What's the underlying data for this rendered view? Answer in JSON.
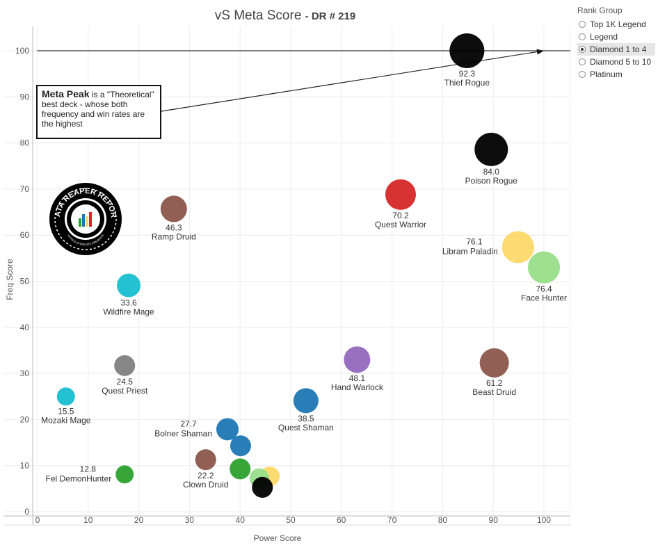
{
  "header": {
    "title": "vS Meta Score",
    "subtitle": "- DR # 219"
  },
  "legend": {
    "title": "Rank Group",
    "items": [
      {
        "label": "Top 1K Legend",
        "selected": false
      },
      {
        "label": "Legend",
        "selected": false
      },
      {
        "label": "Diamond 1 to 4",
        "selected": true
      },
      {
        "label": "Diamond 5 to 10",
        "selected": false
      },
      {
        "label": "Platinum",
        "selected": false
      }
    ]
  },
  "annotation": {
    "bold": "Meta Peak",
    "text": " is a \"Theoretical\" best deck - whose both frequency and win rates are the highest"
  },
  "logo": {
    "text_top": "DATA REAPER REPORT",
    "text_bottom": "VICIOUS SYNDICATE PRESENTS"
  },
  "chart_data": {
    "type": "scatter",
    "xlabel": "Power Score",
    "ylabel": "Freq Score",
    "xlim": [
      0,
      105
    ],
    "ylim": [
      -1,
      105
    ],
    "xticks": [
      0,
      10,
      20,
      30,
      40,
      50,
      60,
      70,
      80,
      90,
      100
    ],
    "yticks": [
      0,
      10,
      20,
      30,
      40,
      50,
      60,
      70,
      80,
      90,
      100
    ],
    "grid": true,
    "reference_line_y": 100,
    "meta_peak": {
      "x": 100,
      "y": 100
    },
    "points": [
      {
        "name": "Thief Rogue",
        "score": "92.3",
        "x": 84.8,
        "y": 100.0,
        "color": "#000000",
        "r": 25,
        "label_pos": "below"
      },
      {
        "name": "Poison Rogue",
        "score": "84.0",
        "x": 89.6,
        "y": 78.6,
        "color": "#000000",
        "r": 24,
        "label_pos": "below"
      },
      {
        "name": "Quest Warrior",
        "score": "70.2",
        "x": 71.7,
        "y": 68.8,
        "color": "#d62728",
        "r": 22,
        "label_pos": "below"
      },
      {
        "name": "Libram Paladin",
        "score": "76.1",
        "x": 94.9,
        "y": 57.4,
        "color": "#fdd86a",
        "r": 23,
        "label_pos": "left"
      },
      {
        "name": "Face Hunter",
        "score": "76.4",
        "x": 100.0,
        "y": 53.0,
        "color": "#98df8a",
        "r": 23,
        "label_pos": "below"
      },
      {
        "name": "Ramp Druid",
        "score": "46.3",
        "x": 26.9,
        "y": 65.7,
        "color": "#8c564b",
        "r": 19,
        "label_pos": "below"
      },
      {
        "name": "Wildfire Mage",
        "score": "33.6",
        "x": 18.0,
        "y": 49.1,
        "color": "#17becf",
        "r": 17,
        "label_pos": "below"
      },
      {
        "name": "Quest Priest",
        "score": "24.5",
        "x": 17.2,
        "y": 31.7,
        "color": "#7f7f7f",
        "r": 15,
        "label_pos": "below"
      },
      {
        "name": "Mozaki Mage",
        "score": "15.5",
        "x": 5.6,
        "y": 25.0,
        "color": "#17becf",
        "r": 13,
        "label_pos": "below"
      },
      {
        "name": "Hand Warlock",
        "score": "48.1",
        "x": 63.1,
        "y": 33.0,
        "color": "#9467bd",
        "r": 19,
        "label_pos": "below"
      },
      {
        "name": "Beast Druid",
        "score": "61.2",
        "x": 90.2,
        "y": 32.3,
        "color": "#8c564b",
        "r": 21,
        "label_pos": "below"
      },
      {
        "name": "Quest Shaman",
        "score": "38.5",
        "x": 53.0,
        "y": 24.1,
        "color": "#1f77b4",
        "r": 18,
        "label_pos": "below"
      },
      {
        "name": "Bolner Shaman",
        "score": "27.7",
        "x": 37.5,
        "y": 17.9,
        "color": "#1f77b4",
        "r": 16,
        "label_pos": "left"
      },
      {
        "name": "",
        "score": "",
        "x": 40.1,
        "y": 14.3,
        "color": "#1f77b4",
        "r": 15,
        "label_pos": "none"
      },
      {
        "name": "Clown Druid",
        "score": "22.2",
        "x": 33.2,
        "y": 11.3,
        "color": "#8c564b",
        "r": 15,
        "label_pos": "below"
      },
      {
        "name": "Fel DemonHunter",
        "score": "12.8",
        "x": 17.2,
        "y": 8.1,
        "color": "#2ca02c",
        "r": 13,
        "label_pos": "left"
      },
      {
        "name": "",
        "score": "",
        "x": 40.0,
        "y": 9.3,
        "color": "#2ca02c",
        "r": 15,
        "label_pos": "none"
      },
      {
        "name": "",
        "score": "",
        "x": 45.9,
        "y": 7.7,
        "color": "#fdd86a",
        "r": 14,
        "label_pos": "none"
      },
      {
        "name": "",
        "score": "",
        "x": 43.8,
        "y": 7.3,
        "color": "#98df8a",
        "r": 14,
        "label_pos": "none"
      },
      {
        "name": "",
        "score": "",
        "x": 44.4,
        "y": 5.3,
        "color": "#000000",
        "r": 15,
        "label_pos": "none"
      }
    ]
  }
}
